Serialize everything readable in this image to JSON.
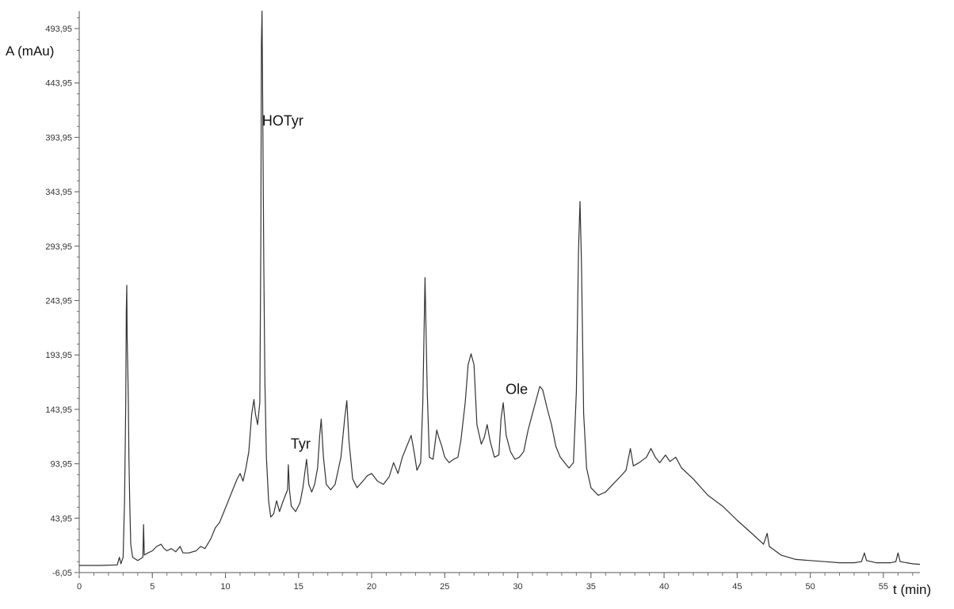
{
  "chart_data": {
    "type": "line",
    "title": "",
    "xlabel": "t (min)",
    "ylabel": "A (mAu)",
    "xlim": [
      0,
      57.5
    ],
    "ylim": [
      -6.05,
      510
    ],
    "grid": false,
    "x_ticks": [
      0,
      5,
      10,
      15,
      20,
      25,
      30,
      35,
      40,
      45,
      50,
      55
    ],
    "x_tick_labels": [
      "0",
      "5",
      "10",
      "15",
      "20",
      "25",
      "30",
      "35",
      "40",
      "45",
      "50",
      "55"
    ],
    "y_ticks": [
      -6.05,
      43.95,
      93.95,
      143.95,
      193.95,
      243.95,
      293.95,
      343.95,
      393.95,
      443.95,
      493.95
    ],
    "y_tick_labels": [
      "-6,05",
      "43,95",
      "93,95",
      "143,95",
      "193,95",
      "243,95",
      "293,95",
      "343,95",
      "393,95",
      "443,95",
      "493,95"
    ],
    "annotations": [
      {
        "text": "HOTyr",
        "x": 12.35,
        "y": 405
      },
      {
        "text": "Tyr",
        "x": 14.3,
        "y": 108
      },
      {
        "text": "Ole",
        "x": 29.0,
        "y": 158
      }
    ],
    "series": [
      {
        "name": "",
        "points": [
          [
            0,
            0.5
          ],
          [
            1.5,
            0.5
          ],
          [
            2.6,
            1
          ],
          [
            2.75,
            8
          ],
          [
            2.85,
            2
          ],
          [
            3.0,
            8
          ],
          [
            3.1,
            60
          ],
          [
            3.18,
            150
          ],
          [
            3.22,
            235
          ],
          [
            3.25,
            258
          ],
          [
            3.28,
            210
          ],
          [
            3.32,
            180
          ],
          [
            3.36,
            150
          ],
          [
            3.4,
            100
          ],
          [
            3.45,
            60
          ],
          [
            3.52,
            20
          ],
          [
            3.65,
            8
          ],
          [
            4.0,
            5
          ],
          [
            4.35,
            8
          ],
          [
            4.4,
            38
          ],
          [
            4.45,
            10
          ],
          [
            4.7,
            12
          ],
          [
            5.0,
            14
          ],
          [
            5.3,
            18
          ],
          [
            5.6,
            20
          ],
          [
            5.8,
            16
          ],
          [
            6.0,
            14
          ],
          [
            6.3,
            16
          ],
          [
            6.6,
            13
          ],
          [
            6.9,
            18
          ],
          [
            7.1,
            12
          ],
          [
            7.5,
            12
          ],
          [
            8.0,
            14
          ],
          [
            8.3,
            18
          ],
          [
            8.6,
            16
          ],
          [
            9.0,
            25
          ],
          [
            9.3,
            35
          ],
          [
            9.6,
            40
          ],
          [
            9.9,
            50
          ],
          [
            10.2,
            60
          ],
          [
            10.5,
            70
          ],
          [
            10.8,
            80
          ],
          [
            11.0,
            85
          ],
          [
            11.2,
            78
          ],
          [
            11.4,
            90
          ],
          [
            11.6,
            105
          ],
          [
            11.8,
            140
          ],
          [
            11.95,
            153
          ],
          [
            12.05,
            140
          ],
          [
            12.2,
            130
          ],
          [
            12.35,
            150
          ],
          [
            12.42,
            300
          ],
          [
            12.46,
            480
          ],
          [
            12.5,
            515
          ],
          [
            12.55,
            420
          ],
          [
            12.62,
            280
          ],
          [
            12.7,
            170
          ],
          [
            12.8,
            100
          ],
          [
            12.95,
            60
          ],
          [
            13.1,
            45
          ],
          [
            13.3,
            48
          ],
          [
            13.5,
            60
          ],
          [
            13.7,
            50
          ],
          [
            13.9,
            58
          ],
          [
            14.1,
            65
          ],
          [
            14.25,
            70
          ],
          [
            14.3,
            93
          ],
          [
            14.38,
            70
          ],
          [
            14.5,
            55
          ],
          [
            14.8,
            50
          ],
          [
            15.1,
            58
          ],
          [
            15.3,
            72
          ],
          [
            15.45,
            88
          ],
          [
            15.55,
            98
          ],
          [
            15.7,
            75
          ],
          [
            15.9,
            68
          ],
          [
            16.1,
            75
          ],
          [
            16.3,
            90
          ],
          [
            16.45,
            120
          ],
          [
            16.55,
            135
          ],
          [
            16.7,
            100
          ],
          [
            16.9,
            75
          ],
          [
            17.2,
            70
          ],
          [
            17.5,
            75
          ],
          [
            17.9,
            100
          ],
          [
            18.15,
            135
          ],
          [
            18.3,
            152
          ],
          [
            18.45,
            115
          ],
          [
            18.7,
            80
          ],
          [
            19.0,
            72
          ],
          [
            19.4,
            78
          ],
          [
            19.7,
            83
          ],
          [
            20.0,
            85
          ],
          [
            20.4,
            78
          ],
          [
            20.8,
            75
          ],
          [
            21.2,
            82
          ],
          [
            21.5,
            95
          ],
          [
            21.8,
            85
          ],
          [
            22.1,
            100
          ],
          [
            22.4,
            110
          ],
          [
            22.7,
            120
          ],
          [
            22.9,
            105
          ],
          [
            23.1,
            88
          ],
          [
            23.35,
            95
          ],
          [
            23.5,
            150
          ],
          [
            23.65,
            265
          ],
          [
            23.8,
            160
          ],
          [
            23.95,
            100
          ],
          [
            24.2,
            98
          ],
          [
            24.45,
            125
          ],
          [
            24.6,
            118
          ],
          [
            24.8,
            110
          ],
          [
            25.0,
            100
          ],
          [
            25.3,
            95
          ],
          [
            25.6,
            98
          ],
          [
            25.9,
            100
          ],
          [
            26.1,
            115
          ],
          [
            26.4,
            150
          ],
          [
            26.6,
            185
          ],
          [
            26.8,
            195
          ],
          [
            27.0,
            185
          ],
          [
            27.2,
            130
          ],
          [
            27.5,
            112
          ],
          [
            27.7,
            118
          ],
          [
            27.9,
            130
          ],
          [
            28.1,
            115
          ],
          [
            28.4,
            100
          ],
          [
            28.7,
            102
          ],
          [
            28.85,
            135
          ],
          [
            29.0,
            150
          ],
          [
            29.2,
            120
          ],
          [
            29.5,
            105
          ],
          [
            29.8,
            98
          ],
          [
            30.1,
            100
          ],
          [
            30.4,
            105
          ],
          [
            30.7,
            125
          ],
          [
            31.0,
            140
          ],
          [
            31.2,
            150
          ],
          [
            31.5,
            165
          ],
          [
            31.7,
            162
          ],
          [
            32.0,
            145
          ],
          [
            32.3,
            130
          ],
          [
            32.6,
            110
          ],
          [
            32.9,
            100
          ],
          [
            33.2,
            95
          ],
          [
            33.5,
            90
          ],
          [
            33.8,
            95
          ],
          [
            34.0,
            160
          ],
          [
            34.15,
            290
          ],
          [
            34.25,
            335
          ],
          [
            34.35,
            280
          ],
          [
            34.5,
            140
          ],
          [
            34.7,
            90
          ],
          [
            35.0,
            72
          ],
          [
            35.5,
            65
          ],
          [
            36.0,
            68
          ],
          [
            36.5,
            75
          ],
          [
            37.0,
            82
          ],
          [
            37.4,
            88
          ],
          [
            37.7,
            108
          ],
          [
            37.9,
            92
          ],
          [
            38.3,
            95
          ],
          [
            38.8,
            100
          ],
          [
            39.1,
            108
          ],
          [
            39.4,
            100
          ],
          [
            39.7,
            95
          ],
          [
            40.1,
            102
          ],
          [
            40.4,
            96
          ],
          [
            40.8,
            100
          ],
          [
            41.2,
            90
          ],
          [
            42.0,
            80
          ],
          [
            43.0,
            65
          ],
          [
            44.0,
            55
          ],
          [
            45.0,
            42
          ],
          [
            46.0,
            30
          ],
          [
            46.8,
            20
          ],
          [
            47.05,
            30
          ],
          [
            47.2,
            18
          ],
          [
            48.0,
            10
          ],
          [
            49.0,
            6
          ],
          [
            50.0,
            5
          ],
          [
            51.0,
            4
          ],
          [
            52.0,
            3
          ],
          [
            53.0,
            3
          ],
          [
            53.5,
            4
          ],
          [
            53.7,
            12
          ],
          [
            53.85,
            5
          ],
          [
            54.5,
            3
          ],
          [
            55.5,
            3
          ],
          [
            55.85,
            4
          ],
          [
            56.0,
            12
          ],
          [
            56.15,
            4
          ],
          [
            57.0,
            2
          ],
          [
            57.5,
            1.5
          ]
        ]
      }
    ]
  }
}
